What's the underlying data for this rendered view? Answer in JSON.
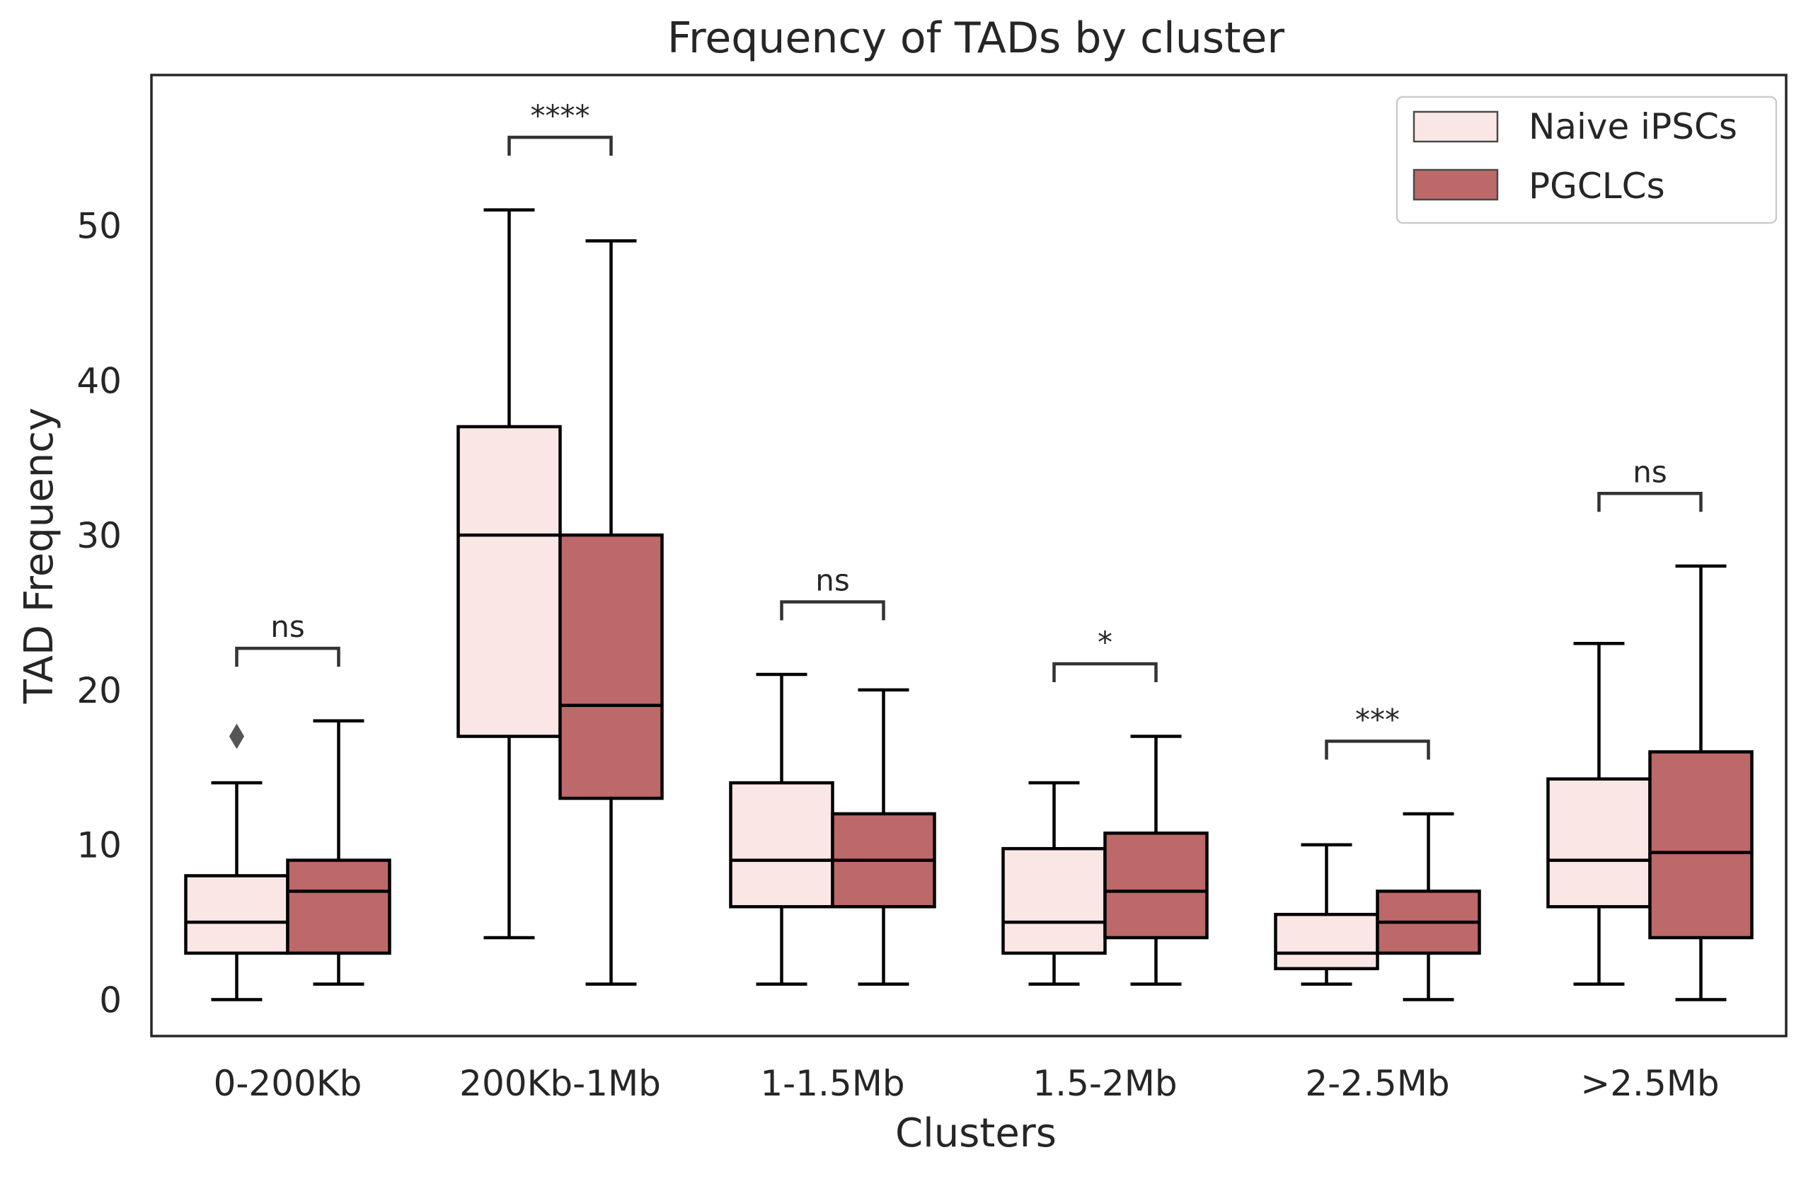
{
  "chart_data": {
    "type": "box",
    "title": "Frequency of TADs by cluster",
    "xlabel": "Clusters",
    "ylabel": "TAD Frequency",
    "ylim": [
      -2.5,
      60
    ],
    "yticks": [
      0,
      10,
      20,
      30,
      40,
      50
    ],
    "grid": false,
    "legend_position": "top-right",
    "categories": [
      "0-200Kb",
      "200Kb-1Mb",
      "1-1.5Mb",
      "1.5-2Mb",
      "2-2.5Mb",
      ">2.5Mb"
    ],
    "series": [
      {
        "name": "Naive iPSCs",
        "color": "#fbe6e6",
        "boxes": [
          {
            "whislo": 0,
            "q1": 3,
            "med": 5,
            "q3": 8,
            "whishi": 14,
            "fliers": [
              17
            ]
          },
          {
            "whislo": 4,
            "q1": 17,
            "med": 30,
            "q3": 37,
            "whishi": 51,
            "fliers": []
          },
          {
            "whislo": 1,
            "q1": 6,
            "med": 9,
            "q3": 14,
            "whishi": 21,
            "fliers": []
          },
          {
            "whislo": 1,
            "q1": 3,
            "med": 5,
            "q3": 9.75,
            "whishi": 14,
            "fliers": []
          },
          {
            "whislo": 1,
            "q1": 2,
            "med": 3,
            "q3": 5.5,
            "whishi": 10,
            "fliers": []
          },
          {
            "whislo": 1,
            "q1": 6,
            "med": 9,
            "q3": 14.25,
            "whishi": 23,
            "fliers": []
          }
        ]
      },
      {
        "name": "PGCLCs",
        "color": "#bd6869",
        "boxes": [
          {
            "whislo": 1,
            "q1": 3,
            "med": 7,
            "q3": 9,
            "whishi": 18,
            "fliers": []
          },
          {
            "whislo": 1,
            "q1": 13,
            "med": 19,
            "q3": 30,
            "whishi": 49,
            "fliers": []
          },
          {
            "whislo": 1,
            "q1": 6,
            "med": 9,
            "q3": 12,
            "whishi": 20,
            "fliers": []
          },
          {
            "whislo": 1,
            "q1": 4,
            "med": 7,
            "q3": 10.75,
            "whishi": 17,
            "fliers": []
          },
          {
            "whislo": 0,
            "q1": 3,
            "med": 5,
            "q3": 7,
            "whishi": 12,
            "fliers": []
          },
          {
            "whislo": 0,
            "q1": 4,
            "med": 9.5,
            "q3": 16,
            "whishi": 28,
            "fliers": []
          }
        ]
      }
    ],
    "annotations": [
      {
        "category": "0-200Kb",
        "label": "ns",
        "y": 21.5
      },
      {
        "category": "200Kb-1Mb",
        "label": "****",
        "y": 54.5
      },
      {
        "category": "1-1.5Mb",
        "label": "ns",
        "y": 24.5
      },
      {
        "category": "1.5-2Mb",
        "label": "*",
        "y": 20.5
      },
      {
        "category": "2-2.5Mb",
        "label": "***",
        "y": 15.5
      },
      {
        "category": ">2.5Mb",
        "label": "ns",
        "y": 31.5
      }
    ]
  }
}
